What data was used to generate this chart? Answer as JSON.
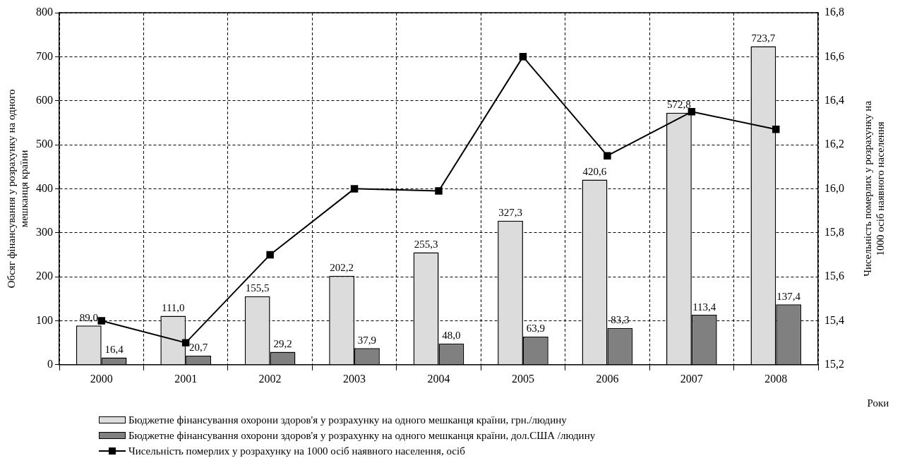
{
  "chart_data": {
    "type": "bar",
    "categories": [
      "2000",
      "2001",
      "2002",
      "2003",
      "2004",
      "2005",
      "2006",
      "2007",
      "2008"
    ],
    "series": [
      {
        "name": "Бюджетне фінансування охорони здоров'я у розрахунку на одного мешканця країни, грн./людину",
        "color": "#dcdcdc",
        "values": [
          89.0,
          111.0,
          155.5,
          202.2,
          255.3,
          327.3,
          420.6,
          572.8,
          723.7
        ],
        "value_labels": [
          "89,0",
          "111,0",
          "155,5",
          "202,2",
          "255,3",
          "327,3",
          "420,6",
          "572,8",
          "723,7"
        ]
      },
      {
        "name": "Бюджетне фінансування охорони здоров'я у розрахунку на одного мешканця країни, дол.США /людину",
        "color": "#808080",
        "values": [
          16.4,
          20.7,
          29.2,
          37.9,
          48.0,
          63.9,
          83.3,
          113.4,
          137.4
        ],
        "value_labels": [
          "16,4",
          "20,7",
          "29,2",
          "37,9",
          "48,0",
          "63,9",
          "83,3",
          "113,4",
          "137,4"
        ]
      },
      {
        "type": "line",
        "name": "Чисельність померлих у розрахунку на 1000 осіб наявного населення, осіб",
        "color": "#000000",
        "axis": "y2",
        "values": [
          15.4,
          15.3,
          15.7,
          16.0,
          15.99,
          16.6,
          16.15,
          16.35,
          16.27
        ]
      }
    ],
    "xlabel": "Роки",
    "ylabel": "Обсяг фінансування у розрахунку на одного мешканця країни",
    "y2label": "Чисельність померлих у розрахунку на 1000 осіб наявного населення",
    "ylim": [
      0,
      800
    ],
    "yticks": [
      0,
      100,
      200,
      300,
      400,
      500,
      600,
      700,
      800
    ],
    "y2lim": [
      15.2,
      16.8
    ],
    "y2ticks": [
      {
        "value": 15.2,
        "label": "15,2"
      },
      {
        "value": 15.4,
        "label": "15,4"
      },
      {
        "value": 15.6,
        "label": "15,6"
      },
      {
        "value": 15.8,
        "label": "15,8"
      },
      {
        "value": 16.0,
        "label": "16,0"
      },
      {
        "value": 16.2,
        "label": "16,2"
      },
      {
        "value": 16.4,
        "label": "16,4"
      },
      {
        "value": 16.6,
        "label": "16,6"
      },
      {
        "value": 16.8,
        "label": "16,8"
      }
    ],
    "grid": true,
    "legend": "bottom",
    "marker": "square",
    "line_style": "solid"
  }
}
